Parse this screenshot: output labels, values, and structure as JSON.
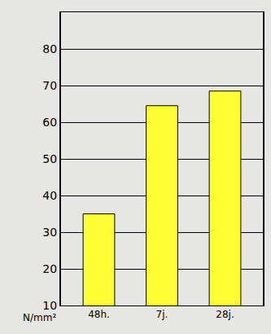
{
  "chart_data": {
    "type": "bar",
    "y_label": "N/mm²",
    "categories": [
      "48h.",
      "7j.",
      "28j."
    ],
    "values": [
      35,
      64.5,
      68.5
    ],
    "color": "#ffff33",
    "ylim": [
      10,
      90
    ],
    "yticks": [
      10,
      20,
      30,
      40,
      50,
      60,
      70,
      80
    ],
    "grid": true
  }
}
